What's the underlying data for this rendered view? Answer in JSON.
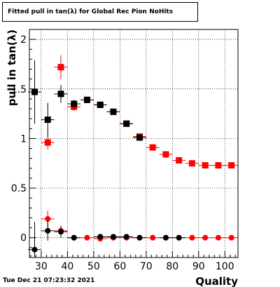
{
  "title": "Fitted pull in tan(λ) for Global Rec Pion NoHits",
  "timestamp": "Tue Dec 21 07:23:32 2021",
  "chart_data": {
    "type": "scatter",
    "title": "Fitted pull in tan(λ) for Global Rec Pion NoHits",
    "xlabel": "Quality",
    "ylabel": "pull in tan(λ)",
    "xlim": [
      25.5,
      105
    ],
    "ylim": [
      -0.2,
      2.1
    ],
    "xticks": [
      30,
      40,
      50,
      60,
      70,
      80,
      90,
      100
    ],
    "yticks": [
      0,
      0.5,
      1,
      1.5,
      2
    ],
    "ytick_labels": [
      "0",
      "0.5",
      "1",
      "1.5",
      "2"
    ],
    "grid": true,
    "series": [
      {
        "color": "#ff0000",
        "marker": "square",
        "points": [
          {
            "x": 32.5,
            "y": 0.96,
            "yerr": 0.07
          },
          {
            "x": 37.5,
            "y": 1.72,
            "yerr": 0.12
          },
          {
            "x": 42.5,
            "y": 1.32,
            "yerr": 0.04
          },
          {
            "x": 47.5,
            "y": 1.39,
            "yerr": 0.03
          },
          {
            "x": 52.5,
            "y": 1.34,
            "yerr": 0.03
          },
          {
            "x": 57.5,
            "y": 1.27,
            "yerr": 0.02
          },
          {
            "x": 62.5,
            "y": 1.15,
            "yerr": 0.02
          },
          {
            "x": 67.5,
            "y": 1.02,
            "yerr": 0.02
          },
          {
            "x": 72.5,
            "y": 0.91,
            "yerr": 0.01
          },
          {
            "x": 77.5,
            "y": 0.84,
            "yerr": 0.01
          },
          {
            "x": 82.5,
            "y": 0.78,
            "yerr": 0.01
          },
          {
            "x": 87.5,
            "y": 0.75,
            "yerr": 0.01
          },
          {
            "x": 92.5,
            "y": 0.73,
            "yerr": 0.01
          },
          {
            "x": 97.5,
            "y": 0.73,
            "yerr": 0.01
          },
          {
            "x": 102.5,
            "y": 0.73,
            "yerr": 0.01
          }
        ]
      },
      {
        "color": "#000000",
        "marker": "square",
        "points": [
          {
            "x": 27.5,
            "y": 1.47,
            "yerr": 0.32
          },
          {
            "x": 32.5,
            "y": 1.19,
            "yerr": 0.17
          },
          {
            "x": 37.5,
            "y": 1.45,
            "yerr": 0.09
          },
          {
            "x": 42.5,
            "y": 1.35,
            "yerr": 0.04
          },
          {
            "x": 47.5,
            "y": 1.39,
            "yerr": 0.03
          },
          {
            "x": 52.5,
            "y": 1.34,
            "yerr": 0.03
          },
          {
            "x": 57.5,
            "y": 1.27,
            "yerr": 0.02
          },
          {
            "x": 62.5,
            "y": 1.15,
            "yerr": 0.02
          },
          {
            "x": 67.5,
            "y": 1.01,
            "yerr": 0.02
          }
        ]
      },
      {
        "color": "#ff0000",
        "marker": "circle",
        "points": [
          {
            "x": 32.5,
            "y": 0.19,
            "yerr": 0.08
          },
          {
            "x": 37.5,
            "y": 0.07,
            "yerr": 0.05
          },
          {
            "x": 42.5,
            "y": 0.0,
            "yerr": 0.02
          },
          {
            "x": 47.5,
            "y": 0.0,
            "yerr": 0.01
          },
          {
            "x": 52.5,
            "y": -0.01,
            "yerr": 0.01
          },
          {
            "x": 57.5,
            "y": 0.0,
            "yerr": 0.01
          },
          {
            "x": 62.5,
            "y": 0.0,
            "yerr": 0.01
          },
          {
            "x": 67.5,
            "y": 0.0,
            "yerr": 0.01
          },
          {
            "x": 72.5,
            "y": 0.0,
            "yerr": 0.01
          },
          {
            "x": 77.5,
            "y": 0.0,
            "yerr": 0.01
          },
          {
            "x": 82.5,
            "y": 0.0,
            "yerr": 0.01
          },
          {
            "x": 87.5,
            "y": 0.0,
            "yerr": 0.01
          },
          {
            "x": 92.5,
            "y": 0.0,
            "yerr": 0.01
          },
          {
            "x": 97.5,
            "y": 0.0,
            "yerr": 0.01
          },
          {
            "x": 102.5,
            "y": 0.0,
            "yerr": 0.01
          }
        ]
      },
      {
        "color": "#000000",
        "marker": "circle",
        "points": [
          {
            "x": 27.5,
            "y": -0.12,
            "yerr": 0.28
          },
          {
            "x": 32.5,
            "y": 0.07,
            "yerr": 0.1
          },
          {
            "x": 37.5,
            "y": 0.06,
            "yerr": 0.06
          },
          {
            "x": 42.5,
            "y": 0.0,
            "yerr": 0.02
          },
          {
            "x": 52.5,
            "y": 0.01,
            "yerr": 0.01
          },
          {
            "x": 57.5,
            "y": 0.01,
            "yerr": 0.01
          },
          {
            "x": 62.5,
            "y": 0.01,
            "yerr": 0.01
          },
          {
            "x": 67.5,
            "y": 0.0,
            "yerr": 0.01
          },
          {
            "x": 77.5,
            "y": 0.0,
            "yerr": 0.01
          },
          {
            "x": 82.5,
            "y": 0.0,
            "yerr": 0.01
          }
        ]
      }
    ]
  }
}
